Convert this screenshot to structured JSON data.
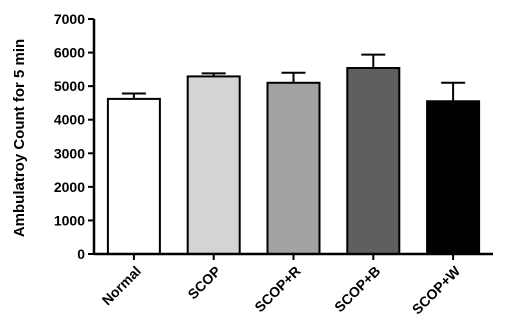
{
  "chart_data": {
    "type": "bar",
    "categories": [
      "Normal",
      "SCOP",
      "SCOP+R",
      "SCOP+B",
      "SCOP+W"
    ],
    "values": [
      4620,
      5290,
      5100,
      5540,
      4550
    ],
    "errors": [
      160,
      90,
      300,
      400,
      550
    ],
    "bar_colors": [
      "#ffffff",
      "#d4d4d4",
      "#a3a3a3",
      "#5f5f5f",
      "#000000"
    ],
    "ylabel": "Ambulatroy Count for 5 min",
    "xlabel": "",
    "title": "",
    "ylim": [
      0,
      7000
    ],
    "yticks": [
      0,
      1000,
      2000,
      3000,
      4000,
      5000,
      6000,
      7000
    ],
    "grid": false,
    "legend": false
  }
}
